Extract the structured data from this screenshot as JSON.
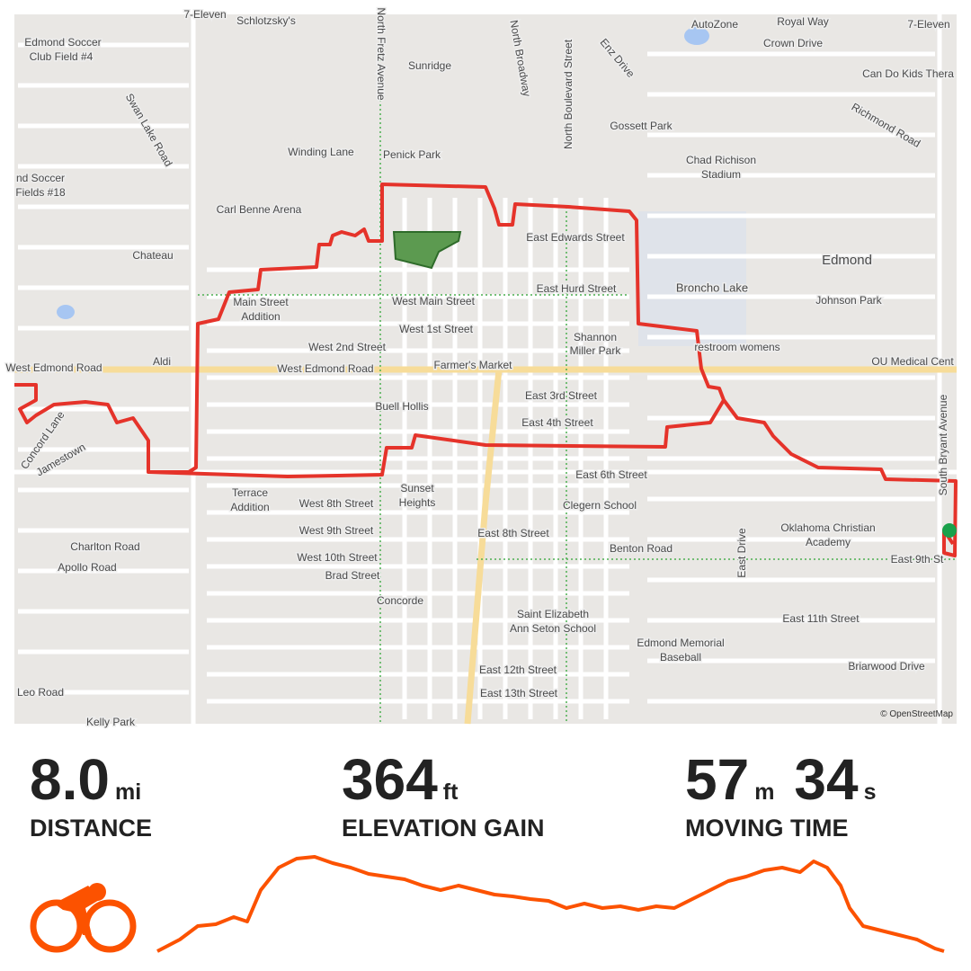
{
  "map": {
    "labels": [
      "7-Eleven",
      "Schlotzsky's",
      "Edmond Soccer",
      "Club Field #4",
      "Sunridge",
      "AutoZone",
      "Royal Way",
      "Crown Drive",
      "7-Eleven",
      "Can Do Kids Thera",
      "Gossett Park",
      "Winding Lane",
      "Penick Park",
      "Chad Richison",
      "Stadium",
      "nd Soccer",
      "Fields #18",
      "Carl Benne Arena",
      "East Edwards Street",
      "Chateau",
      "Edmond",
      "East Hurd Street",
      "Broncho Lake",
      "Johnson Park",
      "West Main Street",
      "Main Street",
      "Addition",
      "West 1st Street",
      "Shannon",
      "Miller Park",
      "West 2nd Street",
      "restroom womens",
      "Aldi",
      "West Edmond Road",
      "West Edmond Road",
      "Farmer's Market",
      "OU Medical Cent",
      "East 3rd Street",
      "Buell Hollis",
      "East 4th Street",
      "East 6th Street",
      "Sunset",
      "Heights",
      "Terrace",
      "Addition",
      "West 8th Street",
      "Clegern School",
      "Oklahoma Christian",
      "Academy",
      "West 9th Street",
      "East 8th Street",
      "Charlton Road",
      "Benton Road",
      "West 10th Street",
      "East 9th St",
      "Apollo Road",
      "Brad Street",
      "Concorde",
      "Saint Elizabeth",
      "Ann Seton School",
      "East 11th Street",
      "Edmond Memorial",
      "Baseball",
      "East 12th Street",
      "Briarwood Drive",
      "East 13th Street",
      "Leo Road",
      "Kelly Park",
      "North Fretz Avenue",
      "North Broadway",
      "North Boulevard Street",
      "Swan Lake Road",
      "Richmond Road",
      "Enz Drive",
      "Concord Lane",
      "Jamestown",
      "East Drive",
      "South Bryant Avenue"
    ],
    "attribution": "© OpenStreetMap"
  },
  "stats": [
    {
      "parts": [
        {
          "value": "8.0",
          "unit": "mi"
        }
      ],
      "label": "DISTANCE"
    },
    {
      "parts": [
        {
          "value": "364",
          "unit": "ft"
        }
      ],
      "label": "ELEVATION GAIN"
    },
    {
      "parts": [
        {
          "value": "57",
          "unit": "m"
        },
        {
          "value": "34",
          "unit": "s"
        }
      ],
      "label": "MOVING TIME"
    }
  ]
}
